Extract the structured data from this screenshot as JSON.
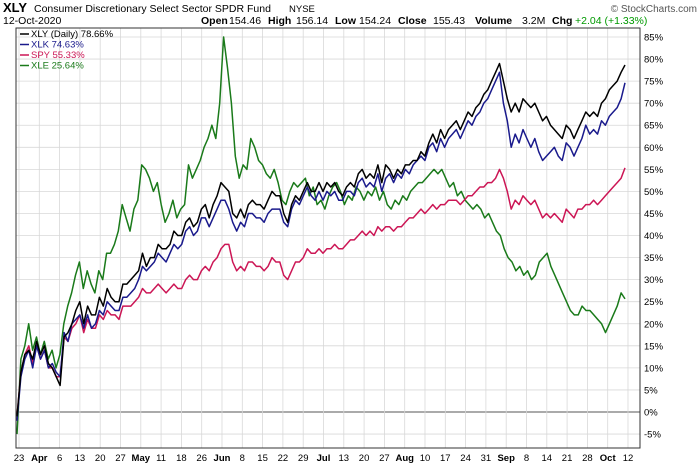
{
  "header": {
    "symbol": "XLY",
    "name": "Consumer Discretionary Select Sector SPDR Fund",
    "exchange": "NYSE",
    "date": "12-Oct-2020",
    "open_label": "Open",
    "open": "154.46",
    "high_label": "High",
    "high": "156.14",
    "low_label": "Low",
    "low": "154.24",
    "close_label": "Close",
    "close": "155.43",
    "volume_label": "Volume",
    "volume": "3.2M",
    "chg_label": "Chg",
    "chg": "+2.04 (+1.33%)",
    "chg_color": "#009900"
  },
  "watermark": "© StockCharts.com",
  "colors": {
    "xly": "#000000",
    "xlk": "#1a1a8c",
    "spy": "#cc1655",
    "xle": "#1a7a1a",
    "grid": "#d8d8d8",
    "zero_line": "#555555",
    "frame": "#333333"
  },
  "chart_data": {
    "type": "line",
    "x_ticks": [
      "23",
      "Apr",
      "6",
      "13",
      "20",
      "27",
      "May",
      "11",
      "18",
      "26",
      "Jun",
      "8",
      "15",
      "22",
      "29",
      "Jul",
      "13",
      "20",
      "27",
      "Aug",
      "10",
      "17",
      "24",
      "31",
      "Sep",
      "8",
      "14",
      "21",
      "28",
      "Oct",
      "12"
    ],
    "y_ticks": [
      "-5%",
      "0%",
      "5%",
      "10%",
      "15%",
      "20%",
      "25%",
      "30%",
      "35%",
      "40%",
      "45%",
      "50%",
      "55%",
      "60%",
      "65%",
      "70%",
      "75%",
      "80%",
      "85%"
    ],
    "ylim": [
      -7,
      87
    ],
    "y_unit": "%",
    "grid": true,
    "legend_position": "top-left",
    "series": [
      {
        "name": "XLY (Daily) 78.66%",
        "key": "xly",
        "values": [
          -1,
          9,
          13,
          14,
          12,
          16,
          13,
          15,
          11,
          10,
          8,
          6,
          17,
          18,
          20,
          23,
          25,
          20,
          24,
          22,
          22,
          26,
          24,
          28,
          26,
          25,
          25,
          29,
          29,
          30,
          31,
          32,
          36,
          33,
          35,
          35,
          38,
          37,
          37,
          38,
          41,
          40,
          40,
          43,
          44,
          42,
          43,
          46,
          47,
          44,
          47,
          49,
          52,
          51,
          50,
          45,
          44,
          46,
          44,
          47,
          48,
          47,
          47,
          46,
          48,
          50,
          49,
          49,
          45,
          43,
          47,
          49,
          48,
          50,
          52,
          50,
          50,
          52,
          50,
          52,
          51,
          52,
          50,
          49,
          51,
          52,
          51,
          54,
          55,
          53,
          54,
          53,
          56,
          52,
          56,
          55,
          53,
          55,
          54,
          56,
          56,
          57,
          57,
          59,
          58,
          61,
          63,
          61,
          64,
          62,
          64,
          65,
          66,
          64,
          66,
          68,
          67,
          69,
          70,
          72,
          73,
          75,
          77,
          79,
          75,
          71,
          68,
          70,
          68,
          71,
          70,
          69,
          70,
          68,
          66,
          67,
          65,
          64,
          63,
          62,
          65,
          64,
          62,
          64,
          66,
          68,
          67,
          68,
          67,
          70,
          71,
          73,
          74,
          75,
          77,
          78.66
        ]
      },
      {
        "name": "XLK 74.63%",
        "key": "xlk",
        "values": [
          -2,
          8,
          12,
          14,
          10,
          15,
          12,
          14,
          10,
          11,
          9,
          8,
          18,
          16,
          20,
          21,
          22,
          19,
          22,
          19,
          20,
          23,
          22,
          25,
          24,
          23,
          23,
          26,
          26,
          27,
          28,
          30,
          33,
          32,
          33,
          34,
          36,
          35,
          34,
          36,
          38,
          37,
          38,
          41,
          42,
          40,
          41,
          44,
          44,
          42,
          44,
          46,
          48,
          48,
          46,
          43,
          41,
          43,
          42,
          45,
          45,
          44,
          44,
          43,
          45,
          46,
          46,
          46,
          43,
          42,
          46,
          48,
          47,
          49,
          51,
          49,
          48,
          50,
          48,
          50,
          49,
          50,
          48,
          48,
          50,
          50,
          49,
          52,
          53,
          51,
          52,
          51,
          54,
          50,
          53,
          54,
          52,
          54,
          53,
          55,
          54,
          56,
          57,
          58,
          57,
          60,
          61,
          59,
          62,
          60,
          62,
          63,
          64,
          62,
          64,
          66,
          65,
          67,
          68,
          70,
          71,
          73,
          75,
          77,
          70,
          66,
          60,
          63,
          61,
          64,
          62,
          60,
          62,
          59,
          57,
          58,
          59,
          60,
          58,
          57,
          61,
          60,
          58,
          60,
          62,
          65,
          63,
          64,
          63,
          66,
          65,
          67,
          68,
          69,
          71,
          74.63
        ]
      },
      {
        "name": "SPY 55.33%",
        "key": "spy",
        "values": [
          -1,
          9,
          13,
          15,
          11,
          15,
          12,
          14,
          10,
          10,
          8,
          8,
          17,
          16,
          19,
          20,
          22,
          18,
          21,
          19,
          19,
          22,
          21,
          23,
          22,
          22,
          21,
          24,
          24,
          24,
          25,
          26,
          28,
          27,
          27,
          28,
          29,
          28,
          27,
          28,
          29,
          28,
          28,
          30,
          31,
          30,
          30,
          32,
          33,
          32,
          34,
          35,
          37,
          38,
          38,
          34,
          32,
          33,
          32,
          34,
          34,
          33,
          33,
          32,
          33,
          35,
          34,
          34,
          31,
          30,
          32,
          34,
          34,
          35,
          37,
          36,
          36,
          37,
          36,
          37,
          37,
          38,
          37,
          37,
          38,
          39,
          39,
          40,
          41,
          40,
          41,
          40,
          42,
          41,
          42,
          42,
          41,
          42,
          42,
          43,
          44,
          44,
          45,
          46,
          45,
          46,
          47,
          46,
          47,
          47,
          48,
          48,
          48,
          47,
          48,
          49,
          49,
          50,
          51,
          51,
          52,
          52,
          53,
          55,
          53,
          50,
          46,
          48,
          47,
          49,
          48,
          47,
          48,
          46,
          44,
          45,
          44,
          45,
          44,
          43,
          46,
          45,
          44,
          46,
          46,
          47,
          47,
          48,
          47,
          48,
          49,
          50,
          51,
          52,
          53,
          55.33
        ]
      },
      {
        "name": "XLE 25.64%",
        "key": "xle",
        "values": [
          -5,
          12,
          15,
          20,
          14,
          17,
          13,
          16,
          12,
          14,
          10,
          13,
          20,
          24,
          27,
          31,
          34,
          28,
          32,
          29,
          27,
          32,
          30,
          36,
          36,
          38,
          41,
          47,
          44,
          41,
          46,
          48,
          56,
          55,
          53,
          50,
          52,
          47,
          43,
          45,
          48,
          44,
          46,
          47,
          56,
          53,
          55,
          57,
          60,
          62,
          65,
          62,
          70,
          85,
          78,
          70,
          58,
          53,
          56,
          55,
          62,
          60,
          57,
          56,
          54,
          53,
          55,
          52,
          48,
          47,
          50,
          52,
          51,
          52,
          53,
          49,
          51,
          47,
          48,
          46,
          49,
          51,
          52,
          50,
          47,
          49,
          48,
          51,
          50,
          48,
          50,
          49,
          51,
          48,
          50,
          47,
          46,
          48,
          47,
          49,
          48,
          50,
          51,
          52,
          52,
          53,
          54,
          55,
          54,
          55,
          53,
          51,
          52,
          49,
          50,
          48,
          47,
          46,
          47,
          46,
          44,
          45,
          43,
          41,
          40,
          37,
          35,
          34,
          32,
          33,
          31,
          32,
          30,
          31,
          34,
          35,
          36,
          33,
          31,
          29,
          27,
          25,
          23,
          22,
          22,
          24,
          23,
          23,
          22,
          21,
          20,
          18,
          20,
          22,
          24,
          27,
          25.64
        ]
      }
    ]
  }
}
